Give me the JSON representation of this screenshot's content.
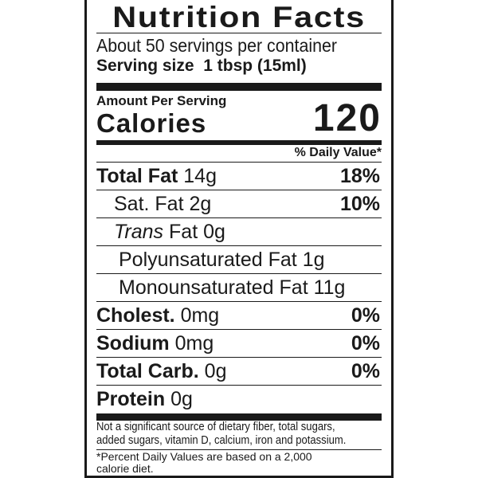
{
  "title": "Nutrition Facts",
  "servings": "About 50 servings per container",
  "serving_size": {
    "label": "Serving size",
    "value": "1 tbsp (15ml)"
  },
  "amount_per_serving": "Amount Per Serving",
  "calories": {
    "label": "Calories",
    "value": "120"
  },
  "daily_value_header": "% Daily Value*",
  "nutrients": [
    {
      "name": "Total Fat",
      "amount": "14g",
      "dv": "18%"
    },
    {
      "name": "Sat. Fat",
      "amount": "2g",
      "dv": "10%"
    },
    {
      "name": "Trans",
      "suffix": "Fat 0g"
    },
    {
      "name": "Polyunsaturated Fat 1g"
    },
    {
      "name": "Monounsaturated Fat 11g"
    },
    {
      "name": "Cholest.",
      "amount": "0mg",
      "dv": "0%"
    },
    {
      "name": "Sodium",
      "amount": "0mg",
      "dv": "0%"
    },
    {
      "name": "Total Carb.",
      "amount": "0g",
      "dv": "0%"
    },
    {
      "name": "Protein",
      "amount": "0g"
    }
  ],
  "footnote": [
    "Not a significant source of dietary fiber, total sugars,",
    "added sugars, vitamin D, calcium, iron and potassium."
  ],
  "dv_note": [
    "*Percent Daily Values are based on a 2,000",
    "calorie diet."
  ]
}
